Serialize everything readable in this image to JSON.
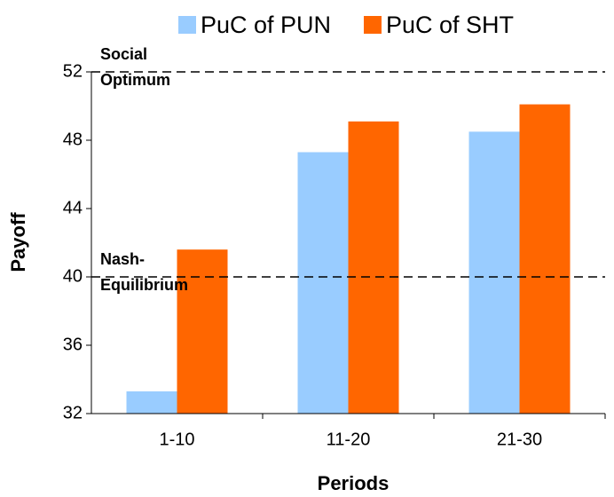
{
  "chart_data": {
    "type": "bar",
    "x_label": "Periods",
    "y_label": "Payoff",
    "categories": [
      "1-10",
      "11-20",
      "21-30"
    ],
    "series": [
      {
        "name": "PuC of PUN",
        "color": "#99ccff",
        "values": [
          33.3,
          47.3,
          48.5
        ]
      },
      {
        "name": "PuC of SHT",
        "color": "#ff6600",
        "values": [
          41.6,
          49.1,
          50.1
        ]
      }
    ],
    "ylim": [
      32,
      52
    ],
    "yticks": [
      32,
      36,
      40,
      44,
      48,
      52
    ],
    "reference_lines": [
      {
        "value": 52,
        "label": [
          "Social",
          "Optimum"
        ]
      },
      {
        "value": 40,
        "label": [
          "Nash-",
          "Equilibrium"
        ]
      }
    ]
  }
}
